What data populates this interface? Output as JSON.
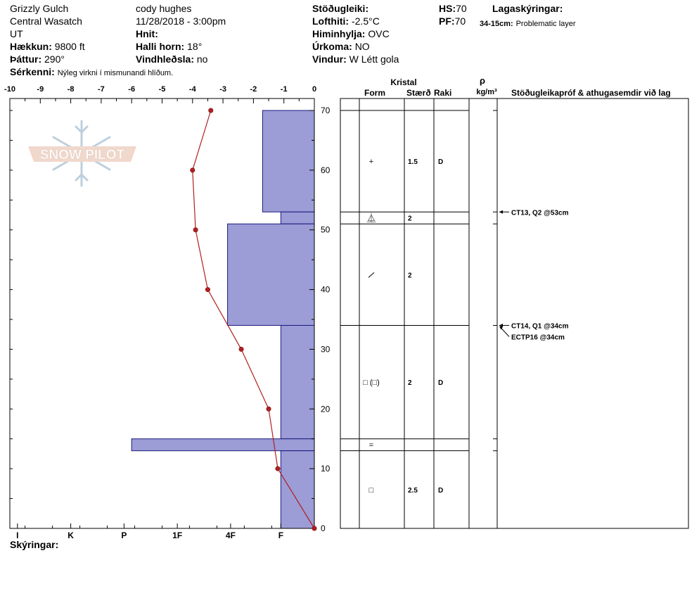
{
  "header": {
    "location": "Grizzly Gulch",
    "range": "Central Wasatch",
    "state": "UT",
    "elevation_label": "Hækkun:",
    "elevation": "9800 ft",
    "aspect_label": "Þáttur:",
    "aspect": "290°",
    "observer": "cody hughes",
    "datetime": "11/28/2018 - 3:00pm",
    "coords_label": "Hnit:",
    "slope_label": "Halli horn:",
    "slope": "18°",
    "wind_load_label": "Vindhleðsla:",
    "wind_load": "no",
    "stability_label": "Stöðugleiki:",
    "air_temp_label": "Lofthiti:",
    "air_temp": "-2.5°C",
    "sky_label": "Himinhylja:",
    "sky": "OVC",
    "precip_label": "Úrkoma:",
    "precip": "NO",
    "wind_label": "Vindur:",
    "wind": "W Létt gola",
    "hs_label": "HS:",
    "hs": "70",
    "pf_label": "PF:",
    "pf": "70",
    "layer_notes_label": "Lagaskýringar:",
    "layer_note_depth": "34-15cm:",
    "layer_note_text": "Problematic layer",
    "remarks_label": "Sérkenni:",
    "remarks": "Nýleg virkni í mismunandi hlíðum.",
    "legend_label": "Skýringar:",
    "logo_text": "SNOW PILOT"
  },
  "table_headers": {
    "crystal": "Kristal",
    "form": "Form",
    "size": "Stærð",
    "moisture": "Raki",
    "density_symbol": "ρ",
    "density_unit": "kg/m³",
    "tests": "Stöðugleikapróf & athugasemdir við lag"
  },
  "chart_data": {
    "type": "bar+line",
    "y_axis": {
      "range": [
        0,
        70
      ],
      "ticks": [
        0,
        10,
        20,
        30,
        40,
        50,
        60,
        70
      ]
    },
    "temperature_axis": {
      "range": [
        -10,
        0
      ],
      "ticks": [
        -10,
        -9,
        -8,
        -7,
        -6,
        -5,
        -4,
        -3,
        -2,
        -1,
        0
      ]
    },
    "hardness_axis": {
      "ticks": [
        "I",
        "K",
        "P",
        "1F",
        "4F",
        "F"
      ],
      "tick_values": [
        -9.75,
        -8,
        -6.25,
        -4.5,
        -2.75,
        -1.1
      ]
    },
    "hardness_layers": [
      {
        "bottom": 53,
        "top": 70,
        "value": -1.7
      },
      {
        "bottom": 51,
        "top": 53,
        "value": -1.1
      },
      {
        "bottom": 34,
        "top": 51,
        "value": -2.85
      },
      {
        "bottom": 15,
        "top": 34,
        "value": -1.1
      },
      {
        "bottom": 13,
        "top": 15,
        "value": -6.0
      },
      {
        "bottom": 0,
        "top": 13,
        "value": -1.1
      }
    ],
    "temperature_profile": [
      {
        "depth": 0,
        "temp": 0
      },
      {
        "depth": 10,
        "temp": -1.2
      },
      {
        "depth": 20,
        "temp": -1.5
      },
      {
        "depth": 30,
        "temp": -2.4
      },
      {
        "depth": 40,
        "temp": -3.5
      },
      {
        "depth": 50,
        "temp": -3.9
      },
      {
        "depth": 60,
        "temp": -4.0
      },
      {
        "depth": 70,
        "temp": -3.4
      }
    ],
    "layer_boundaries": [
      70,
      53,
      51,
      34,
      15,
      13,
      0
    ],
    "layers": [
      {
        "center": 61.5,
        "form": "+",
        "size": "1.5",
        "moisture": "D"
      },
      {
        "center": 52,
        "form": "surface-hoar",
        "size": "2",
        "moisture": ""
      },
      {
        "center": 42.5,
        "form": "/",
        "size": "2",
        "moisture": ""
      },
      {
        "center": 24.5,
        "form": "□ (□)",
        "size": "2",
        "moisture": "D"
      },
      {
        "center": 14,
        "form": "=",
        "size": "",
        "moisture": ""
      },
      {
        "center": 6.5,
        "form": "□",
        "size": "2.5",
        "moisture": "D"
      }
    ],
    "tests": [
      {
        "depth": 53,
        "label": "CT13, Q2 @53cm"
      },
      {
        "depth": 34,
        "label": "CT14, Q1 @34cm"
      },
      {
        "depth": 34,
        "label": "ECTP16 @34cm"
      }
    ]
  }
}
